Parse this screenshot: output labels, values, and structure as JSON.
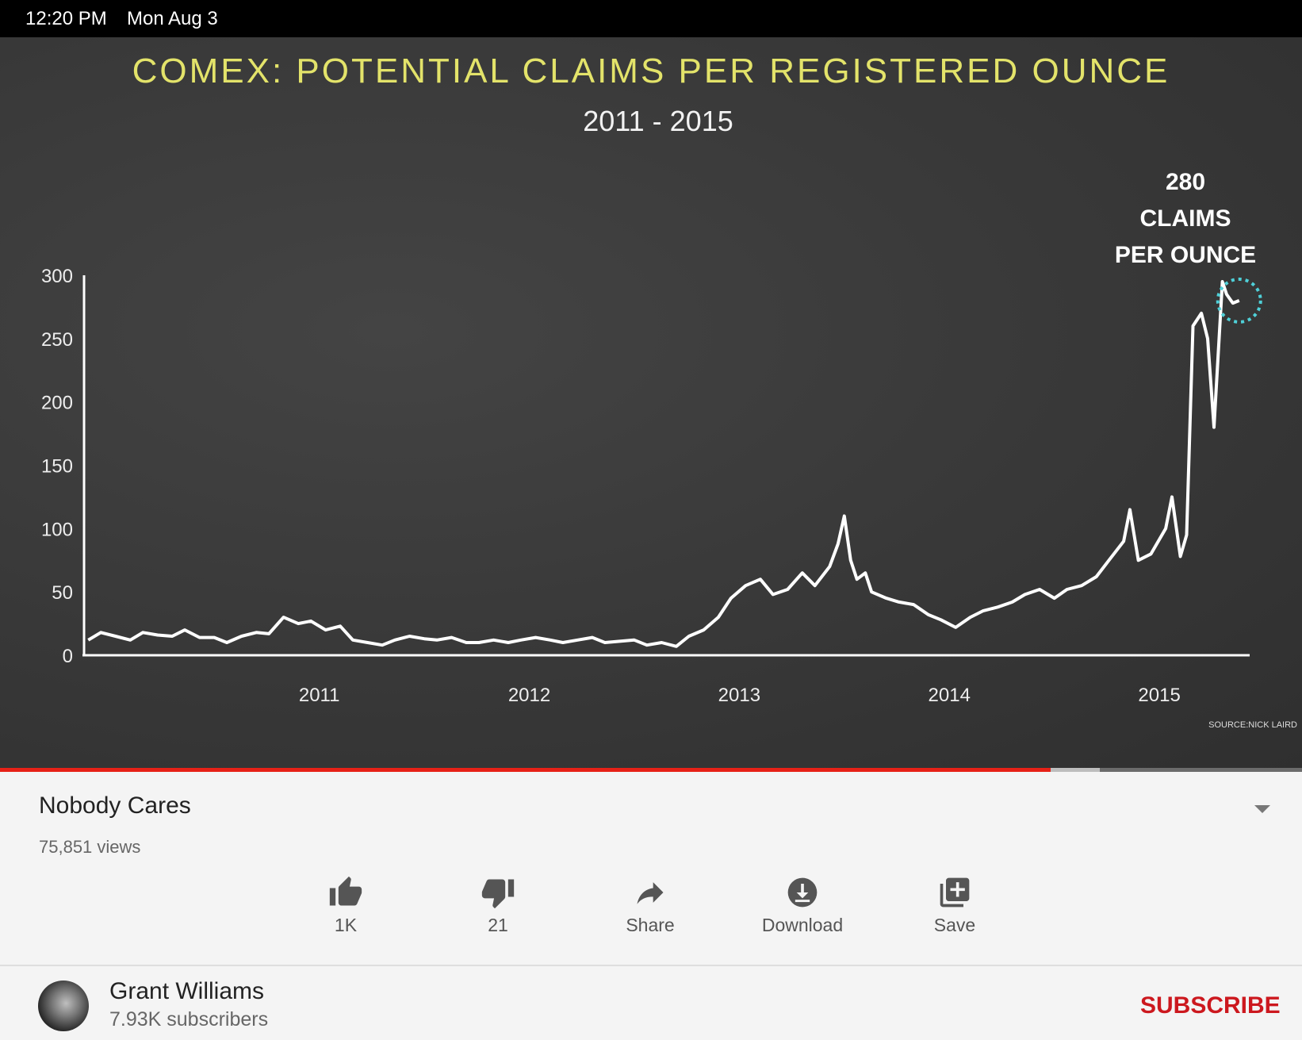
{
  "status_bar": {
    "time": "12:20 PM",
    "date": "Mon Aug 3"
  },
  "video": {
    "progress_fraction": 0.807,
    "buffered_fraction": 0.845,
    "source_note": "SOURCE:NICK LAIRD"
  },
  "chart_data": {
    "type": "line",
    "title": "COMEX: POTENTIAL CLAIMS PER REGISTERED OUNCE",
    "subtitle": "2011 - 2015",
    "annotation": [
      "280",
      "CLAIMS",
      "PER OUNCE"
    ],
    "x_tick_labels": [
      "2011",
      "2012",
      "2013",
      "2014",
      "2015"
    ],
    "y_tick_labels": [
      "0",
      "50",
      "100",
      "150",
      "200",
      "250",
      "300"
    ],
    "ylim": [
      0,
      300
    ],
    "xlim": [
      2010.38,
      2015.93
    ],
    "grid": false,
    "series": [
      {
        "x": [
          2010.4,
          2010.46,
          2010.53,
          2010.6,
          2010.66,
          2010.73,
          2010.8,
          2010.86,
          2010.93,
          2011.0,
          2011.06,
          2011.13,
          2011.2,
          2011.26,
          2011.33,
          2011.4,
          2011.46,
          2011.53,
          2011.6,
          2011.66,
          2011.73,
          2011.8,
          2011.86,
          2011.93,
          2012.0,
          2012.06,
          2012.13,
          2012.2,
          2012.26,
          2012.33,
          2012.4,
          2012.46,
          2012.53,
          2012.6,
          2012.66,
          2012.73,
          2012.8,
          2012.86,
          2012.93,
          2013.0,
          2013.06,
          2013.13,
          2013.2,
          2013.26,
          2013.33,
          2013.4,
          2013.46,
          2013.53,
          2013.6,
          2013.66,
          2013.73,
          2013.8,
          2013.86,
          2013.93,
          2013.97,
          2014.0,
          2014.03,
          2014.06,
          2014.1,
          2014.13,
          2014.2,
          2014.26,
          2014.33,
          2014.4,
          2014.46,
          2014.53,
          2014.6,
          2014.66,
          2014.73,
          2014.8,
          2014.86,
          2014.93,
          2015.0,
          2015.06,
          2015.13,
          2015.2,
          2015.26,
          2015.33,
          2015.36,
          2015.4,
          2015.46,
          2015.53,
          2015.56,
          2015.6,
          2015.63,
          2015.66,
          2015.7,
          2015.73,
          2015.76,
          2015.8,
          2015.82,
          2015.85,
          2015.88
        ],
        "y": [
          12,
          18,
          15,
          12,
          18,
          16,
          15,
          20,
          14,
          14,
          10,
          15,
          18,
          17,
          30,
          25,
          27,
          20,
          23,
          12,
          10,
          8,
          12,
          15,
          13,
          12,
          14,
          10,
          10,
          12,
          10,
          12,
          14,
          12,
          10,
          12,
          14,
          10,
          11,
          12,
          8,
          10,
          7,
          15,
          20,
          30,
          45,
          55,
          60,
          48,
          52,
          65,
          55,
          70,
          88,
          110,
          75,
          60,
          65,
          50,
          45,
          42,
          40,
          32,
          28,
          22,
          30,
          35,
          38,
          42,
          48,
          52,
          45,
          52,
          55,
          62,
          75,
          90,
          115,
          75,
          80,
          100,
          125,
          78,
          95,
          260,
          270,
          250,
          180,
          295,
          285,
          278,
          280
        ]
      }
    ]
  },
  "video_info": {
    "title": "Nobody Cares",
    "views": "75,851 views",
    "actions": {
      "like": "1K",
      "dislike": "21",
      "share": "Share",
      "download": "Download",
      "save": "Save"
    }
  },
  "channel": {
    "name": "Grant Williams",
    "subscribers": "7.93K subscribers",
    "subscribe_label": "SUBSCRIBE"
  },
  "colors": {
    "title_yellow": "#e3e36a",
    "highlight_cyan": "#4fd0d8",
    "progress_red": "#e62117",
    "subscribe_red": "#cc181e"
  }
}
